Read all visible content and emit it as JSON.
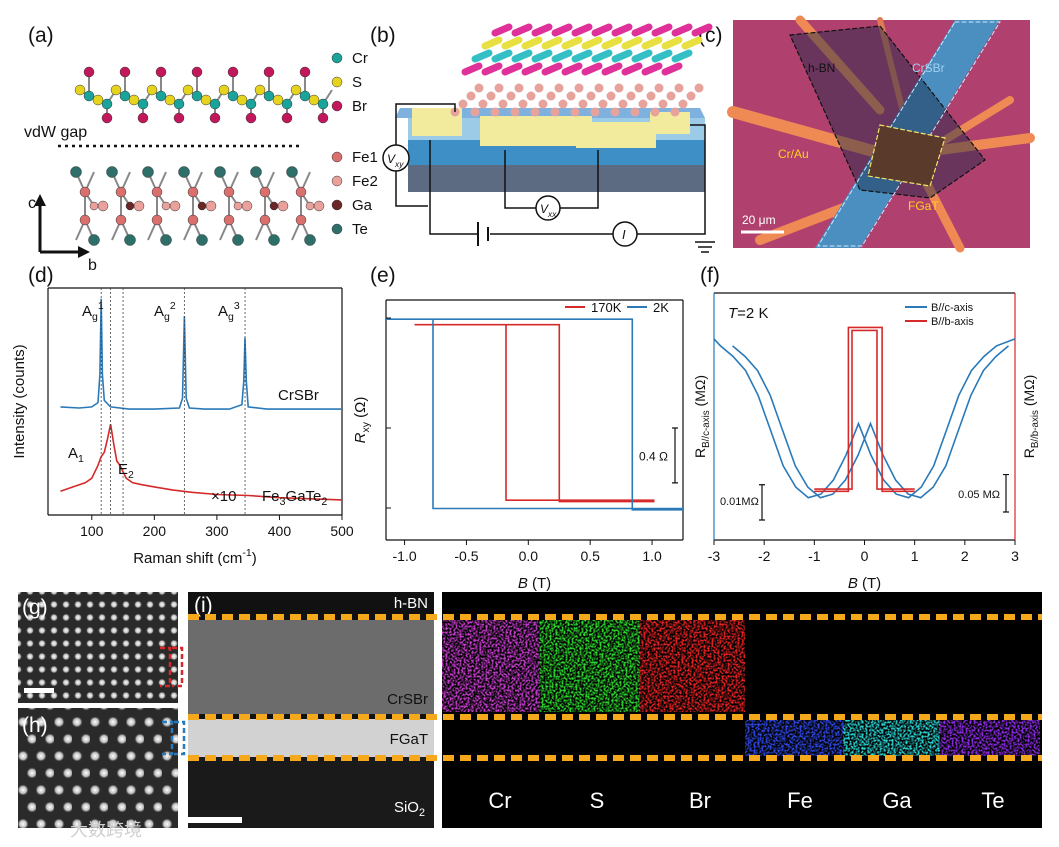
{
  "figure": {
    "a": {
      "label": "(a)",
      "elements": [
        "Cr",
        "S",
        "Br",
        "Fe1",
        "Fe2",
        "Ga",
        "Te"
      ],
      "gap": "vdW gap",
      "axis_c": "c",
      "axis_b": "b"
    },
    "b": {
      "label": "(b)",
      "vxy": {
        "base": "V",
        "sub": "xy"
      },
      "vxx": {
        "base": "V",
        "sub": "xx"
      },
      "current": "I"
    },
    "c": {
      "label": "(c)",
      "hbn": "h-BN",
      "crsbr": "CrSBr",
      "crau": "Cr/Au",
      "fgat": "FGaT",
      "scale": "20 μm"
    },
    "g": {
      "label": "(g)"
    },
    "h": {
      "label": "(h)"
    },
    "i": {
      "label": "(i)",
      "layers": [
        "h-BN",
        "CrSBr",
        "FGaT"
      ],
      "substrate": "SiO2",
      "elements": [
        "Cr",
        "S",
        "Br",
        "Fe",
        "Ga",
        "Te"
      ]
    },
    "watermark": "大数跨境"
  },
  "chart_data": [
    {
      "type": "line",
      "panel_label": "(d)",
      "legend": "inline",
      "xlabel": {
        "base": "Raman shift (cm",
        "sup": "-1",
        "rest": ")"
      },
      "ylabel": "Intensity (counts)",
      "xlim": [
        30,
        500
      ],
      "xticks": [
        100,
        200,
        300,
        400,
        500
      ],
      "ylim": [
        0,
        10.5
      ],
      "vlines": [
        115,
        130,
        150,
        248,
        345
      ],
      "annotations": [
        {
          "base": "A",
          "sub": "g",
          "sup": "1"
        },
        {
          "base": "A",
          "sub": "g",
          "sup": "2"
        },
        {
          "base": "A",
          "sub": "g",
          "sup": "3"
        },
        {
          "base": "A",
          "sub": "1"
        },
        {
          "base": "E",
          "sub": "2"
        },
        "×10"
      ],
      "series": [
        {
          "name": "CrSBr",
          "color": "#2a7ab9",
          "x": [
            50,
            80,
            100,
            110,
            113,
            115,
            117,
            120,
            130,
            160,
            200,
            240,
            245,
            248,
            251,
            256,
            280,
            320,
            340,
            343,
            345,
            347,
            350,
            380,
            420,
            460,
            500
          ],
          "values": [
            5.0,
            4.95,
            5.0,
            5.2,
            6.5,
            10,
            6.5,
            5.3,
            5.0,
            4.9,
            4.9,
            4.95,
            5.4,
            9.2,
            5.4,
            4.95,
            4.9,
            4.9,
            5.1,
            6.2,
            8.2,
            6.2,
            5.0,
            4.9,
            4.9,
            4.9,
            4.9
          ]
        },
        {
          "name": "Fe3GaTe2",
          "color": "#d62a2a",
          "x": [
            50,
            70,
            90,
            100,
            110,
            115,
            120,
            125,
            130,
            135,
            140,
            145,
            150,
            155,
            165,
            180,
            200,
            230,
            260,
            300,
            350,
            400,
            450,
            500
          ],
          "values": [
            1.1,
            1.3,
            1.5,
            1.7,
            2.3,
            2.7,
            2.9,
            3.5,
            4.2,
            3.3,
            2.5,
            2.3,
            2.0,
            1.7,
            1.5,
            1.4,
            1.3,
            1.15,
            1.05,
            0.95,
            0.9,
            0.8,
            0.75,
            0.7
          ]
        }
      ]
    },
    {
      "type": "line",
      "panel_label": "(e)",
      "legend": "upper right",
      "xlabel": {
        "base": "B",
        "rest": " (T)"
      },
      "ylabel": {
        "base": "R",
        "sub": "xy",
        "rest": " (Ω)"
      },
      "xlim": [
        -1.15,
        1.25
      ],
      "xticks": [
        {
          "value": -1,
          "label": "-1.0"
        },
        -0.5,
        {
          "value": 0,
          "label": "0.0"
        },
        0.5,
        {
          "value": 1,
          "label": "1.0"
        }
      ],
      "ylim": [
        0,
        1.75
      ],
      "scale_bar": {
        "value": 0.4,
        "label": "0.4 Ω"
      },
      "series": [
        {
          "name": "170K",
          "color": "#d62a2a",
          "x": [
            -0.92,
            0.25,
            0.25,
            1.02,
            null,
            1.02,
            -0.18,
            -0.18,
            -0.92
          ],
          "values": [
            1.57,
            1.57,
            0.28,
            0.28,
            null,
            0.29,
            0.29,
            1.57,
            1.57
          ]
        },
        {
          "name": "2K",
          "color": "#2a7ab9",
          "x": [
            -1.15,
            0.84,
            0.84,
            1.25,
            null,
            1.25,
            -0.77,
            -0.77,
            -1.15
          ],
          "values": [
            1.61,
            1.61,
            0.22,
            0.22,
            null,
            0.23,
            0.23,
            1.61,
            1.61
          ]
        }
      ]
    },
    {
      "type": "line",
      "panel_label": "(f)",
      "legend": "upper right",
      "annotation": {
        "base": "T",
        "rest": "=2 K"
      },
      "xlabel": {
        "base": "B",
        "rest": " (T)"
      },
      "ylabel": {
        "base": "R",
        "sub": "B//c-axis",
        "rest": " (MΩ)"
      },
      "y2label": {
        "base": "R",
        "sub": "B//b-axis",
        "rest": " (MΩ)"
      },
      "xlim": [
        -3,
        3
      ],
      "xticks": [
        -3,
        -2,
        -1,
        0,
        1,
        2,
        3
      ],
      "ylim": [
        0,
        0.07
      ],
      "y2lim": [
        0,
        0.33
      ],
      "scale_bars": [
        {
          "value": 0.01,
          "label": "0.01MΩ",
          "axis": "y"
        },
        {
          "value": 0.05,
          "label": "0.05 MΩ",
          "axis": "y2"
        }
      ],
      "series": [
        {
          "name": "B//c-axis",
          "color": "#2a7ab9",
          "x": [
            -3,
            -2.87,
            -2.62,
            -2.37,
            -2.12,
            -1.87,
            -1.62,
            -1.37,
            -1.12,
            -0.87,
            -0.62,
            -0.37,
            -0.12,
            0.13,
            0.38,
            0.63,
            0.88,
            1.13,
            1.38,
            1.63,
            1.88,
            2.13,
            2.38,
            2.63,
            3,
            null,
            -2.63,
            -2.38,
            -2.13,
            -1.88,
            -1.63,
            -1.38,
            -1.13,
            -0.88,
            -0.63,
            -0.38,
            -0.13,
            0.12,
            0.37,
            0.62,
            0.87,
            1.12,
            1.37,
            1.62,
            1.87,
            2.12,
            2.37,
            2.62,
            2.87
          ],
          "values": [
            0.057,
            0.055,
            0.052,
            0.048,
            0.041,
            0.031,
            0.021,
            0.015,
            0.012,
            0.013,
            0.017,
            0.024,
            0.033,
            0.024,
            0.017,
            0.013,
            0.012,
            0.015,
            0.021,
            0.031,
            0.041,
            0.048,
            0.052,
            0.055,
            0.057,
            null,
            0.055,
            0.052,
            0.048,
            0.041,
            0.031,
            0.021,
            0.015,
            0.012,
            0.013,
            0.017,
            0.024,
            0.033,
            0.024,
            0.017,
            0.013,
            0.012,
            0.015,
            0.021,
            0.031,
            0.041,
            0.048,
            0.052,
            0.055
          ]
        },
        {
          "name": "B//b-axis",
          "color": "#d62a2a",
          "axis": "y2",
          "x": [
            -1,
            -0.32,
            -0.32,
            0.35,
            0.35,
            1,
            null,
            1,
            0.25,
            0.25,
            -0.25,
            -0.25,
            -1
          ],
          "values": [
            0.065,
            0.065,
            0.284,
            0.284,
            0.065,
            0.065,
            null,
            0.068,
            0.068,
            0.28,
            0.28,
            0.068,
            0.068
          ]
        }
      ]
    }
  ]
}
